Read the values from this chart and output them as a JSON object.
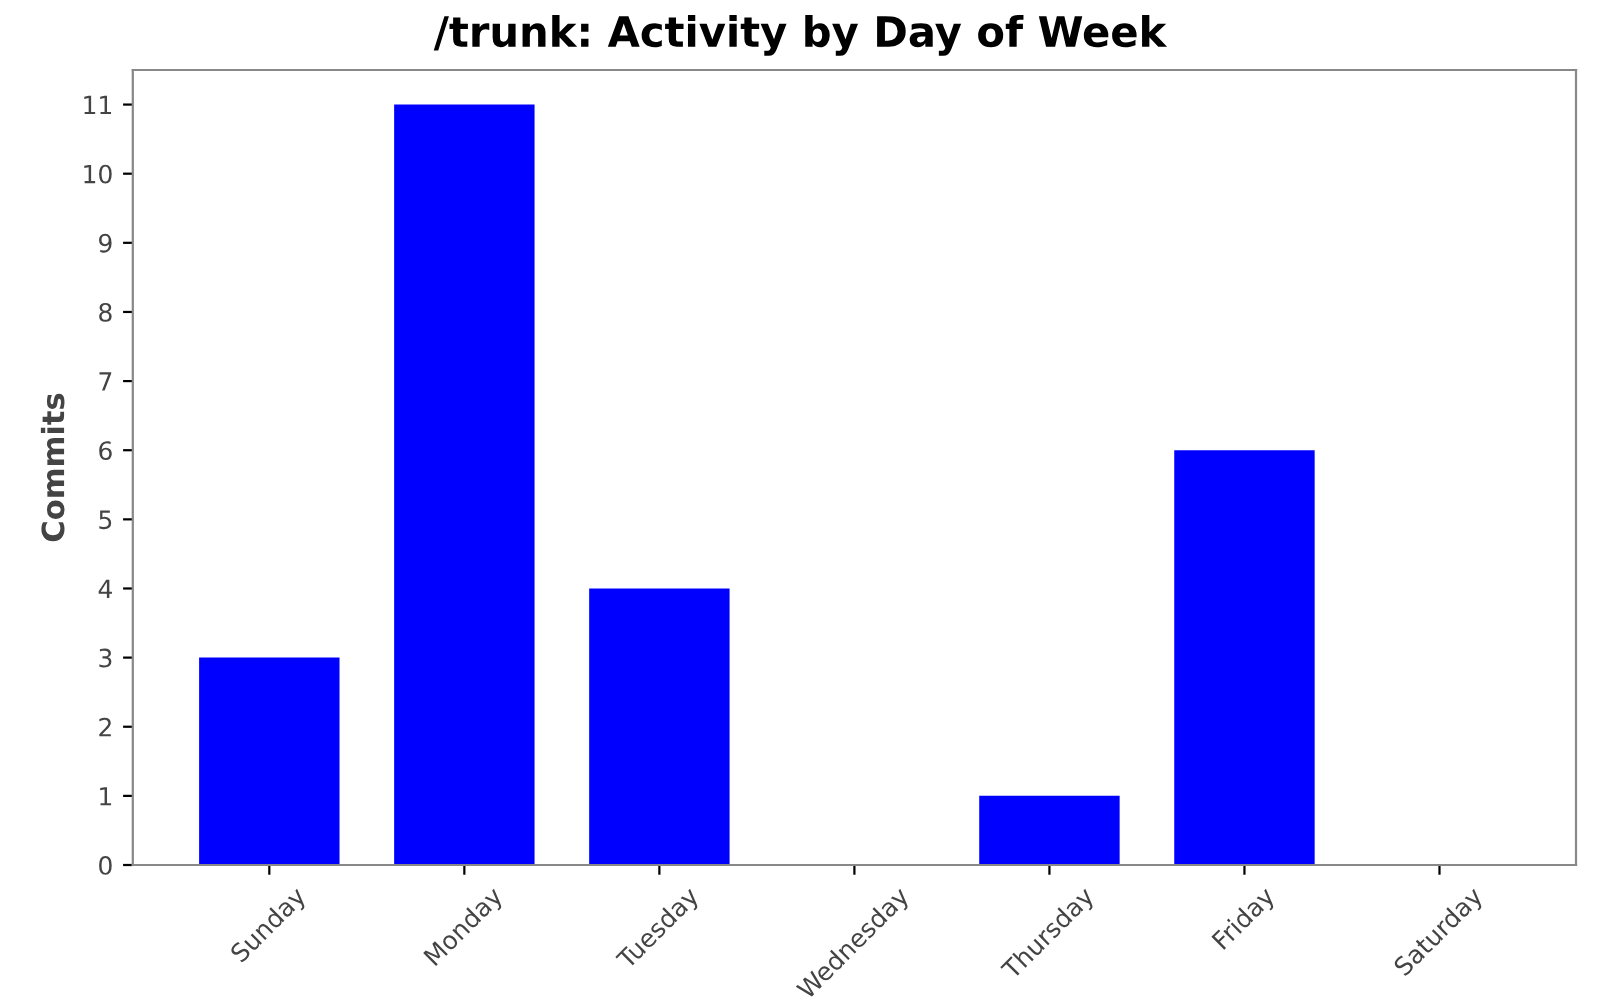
{
  "chart_data": {
    "type": "bar",
    "title": "/trunk: Activity by Day of Week",
    "ylabel": "Commits",
    "categories": [
      "Sunday",
      "Monday",
      "Tuesday",
      "Wednesday",
      "Thursday",
      "Friday",
      "Saturday"
    ],
    "values": [
      3,
      11,
      4,
      0,
      1,
      6,
      0
    ],
    "color": "#0000ff",
    "ylim": [
      0,
      11.5
    ],
    "yticks": [
      0,
      1,
      2,
      3,
      4,
      5,
      6,
      7,
      8,
      9,
      10,
      11
    ],
    "grid": false
  }
}
